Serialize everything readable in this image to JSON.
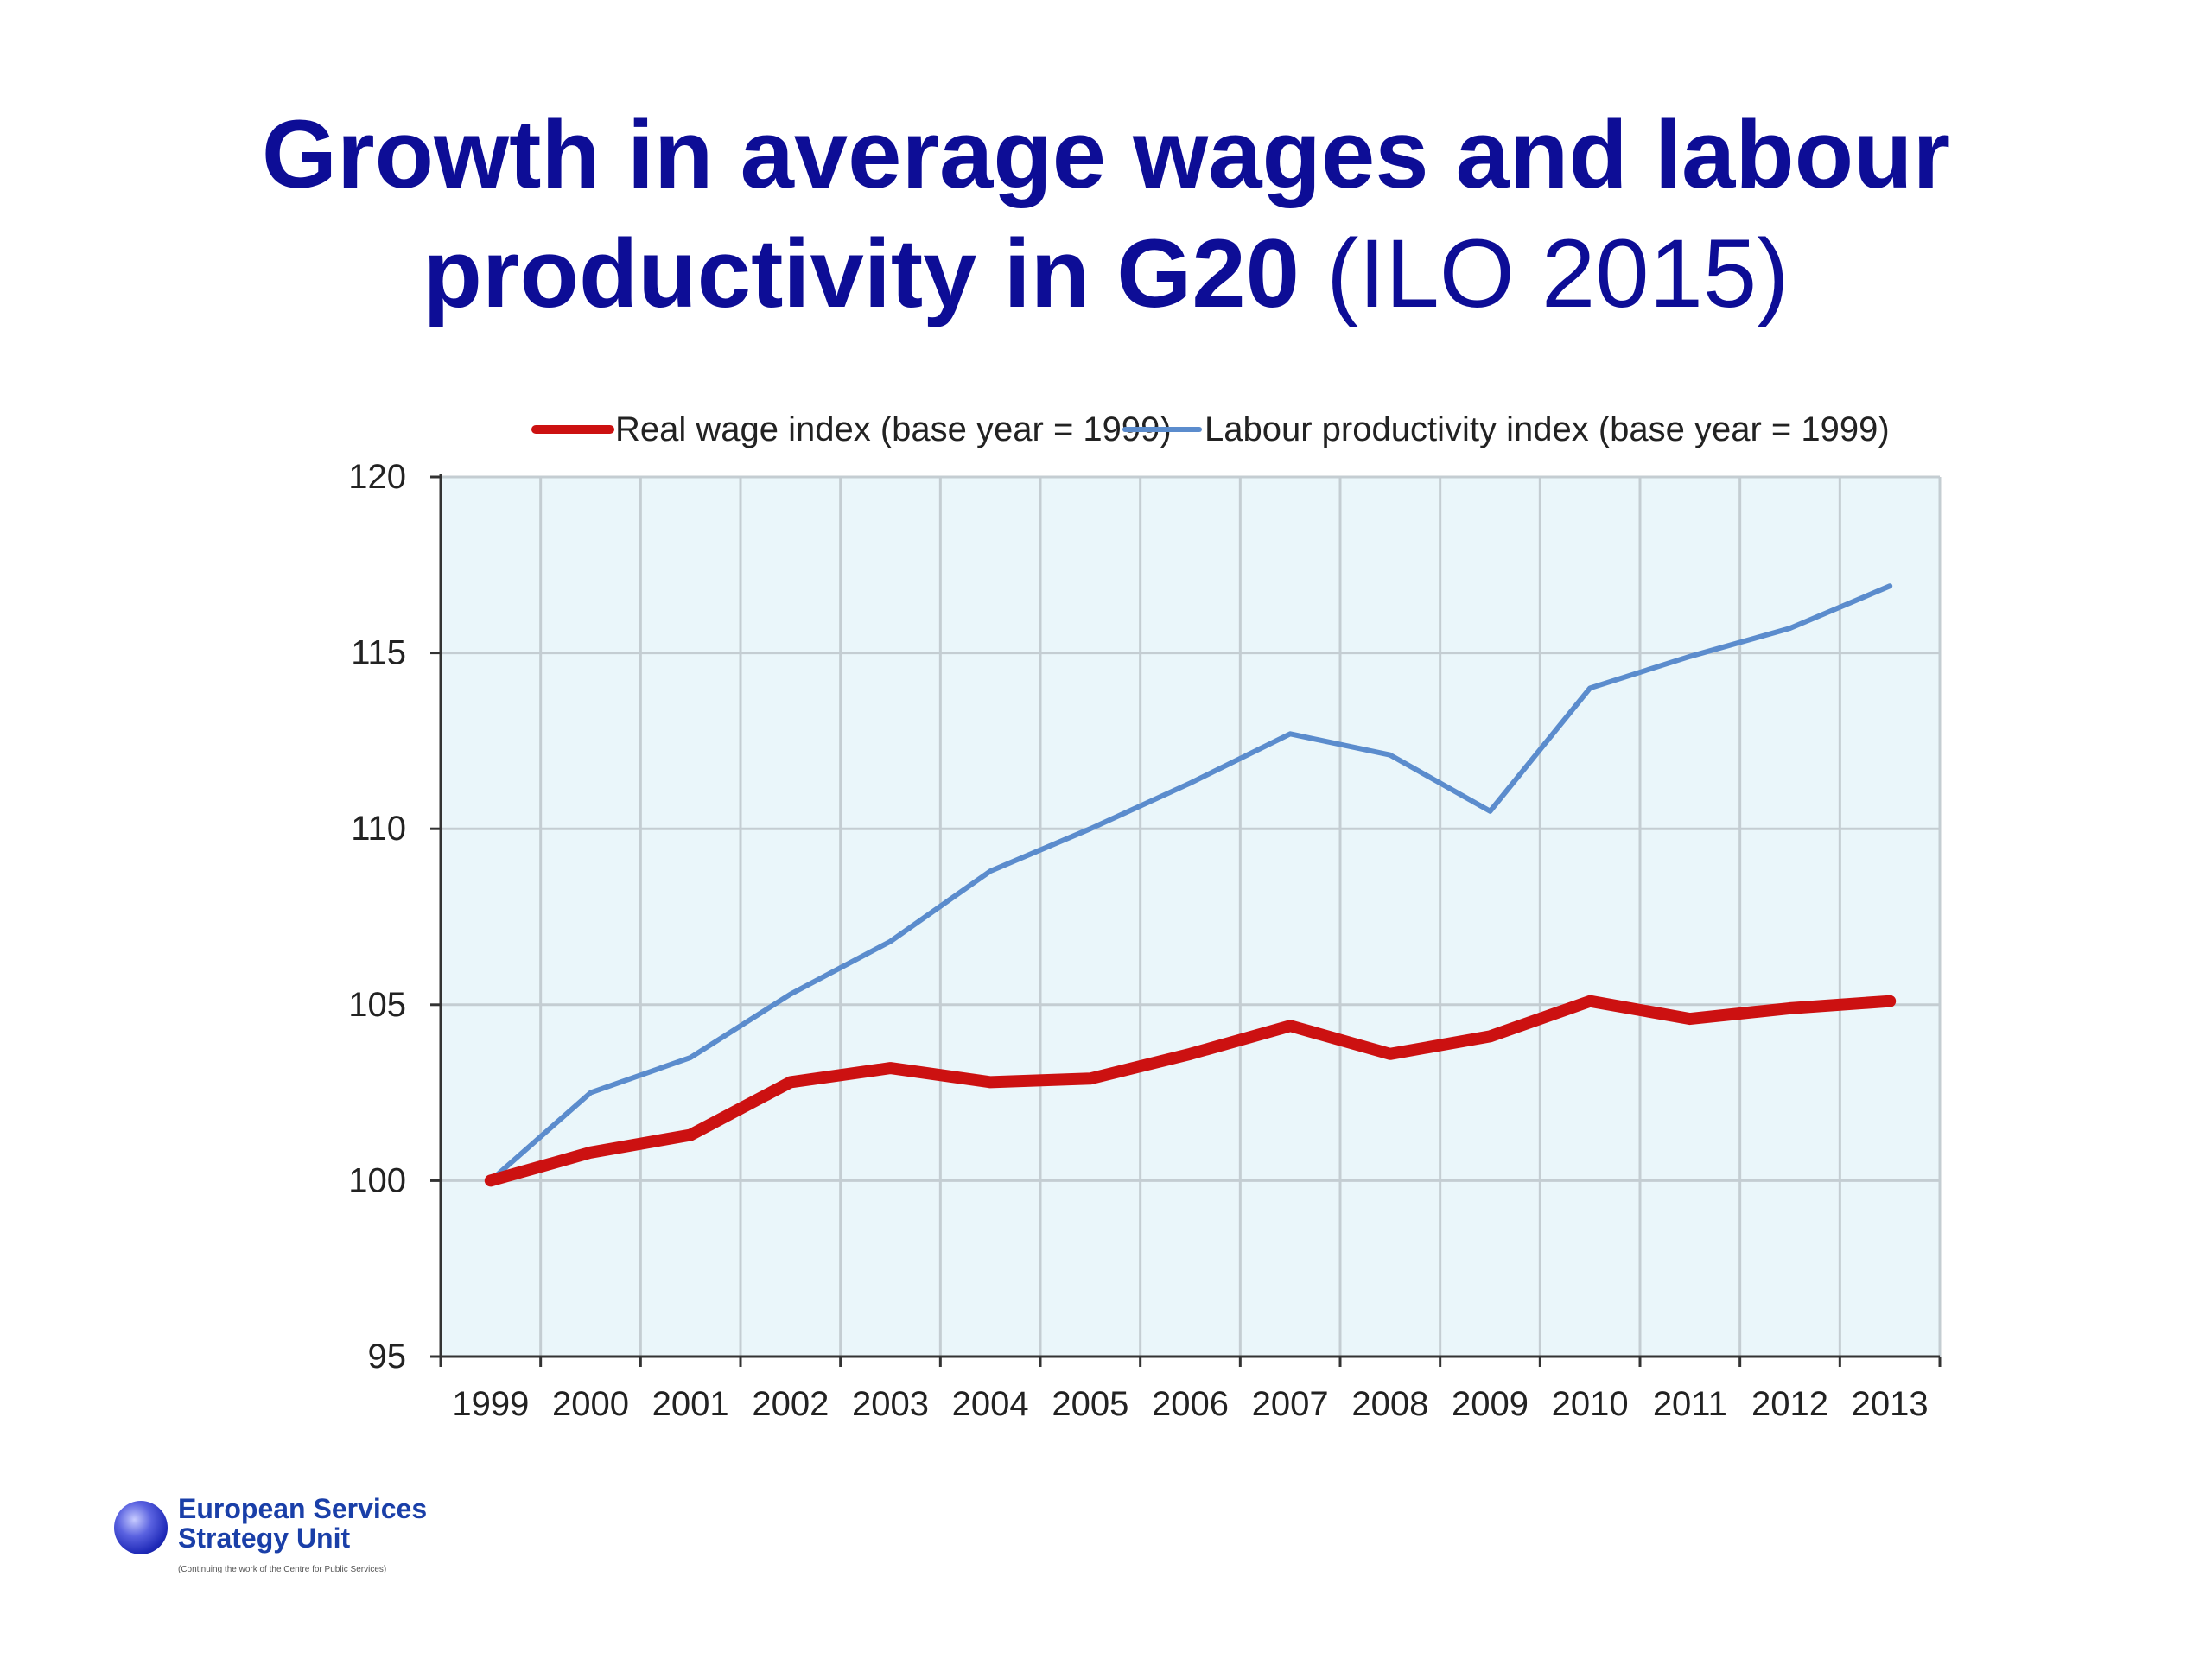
{
  "slide": {
    "title_bold_line1": "Growth in average wages and labour",
    "title_bold_line2": "productivity in G20",
    "title_plain": "(ILO 2015)"
  },
  "logo": {
    "name_line1": "European Services",
    "name_line2": "Strategy Unit",
    "tagline": "(Continuing the work of the Centre for Public Services)"
  },
  "chart_data": {
    "type": "line",
    "x": [
      "1999",
      "2000",
      "2001",
      "2002",
      "2003",
      "2004",
      "2005",
      "2006",
      "2007",
      "2008",
      "2009",
      "2010",
      "2011",
      "2012",
      "2013"
    ],
    "series": [
      {
        "name": "Real wage index (base year = 1999)",
        "color": "#cc1111",
        "values": [
          100,
          100.8,
          101.3,
          102.8,
          103.2,
          102.8,
          102.9,
          103.6,
          104.4,
          103.6,
          104.1,
          105.1,
          104.6,
          104.9,
          105.1
        ]
      },
      {
        "name": "Labour productivity index (base year = 1999)",
        "color": "#5b8ccd",
        "values": [
          100,
          102.5,
          103.5,
          105.3,
          106.8,
          108.8,
          110.0,
          111.3,
          112.7,
          112.1,
          110.5,
          114.0,
          114.9,
          115.7,
          116.9
        ]
      }
    ],
    "y_ticks": [
      "95",
      "100",
      "105",
      "110",
      "115",
      "120"
    ],
    "ylim": [
      95,
      120
    ],
    "grid": true,
    "legend_position": "top"
  }
}
